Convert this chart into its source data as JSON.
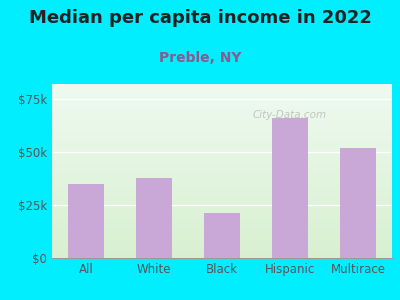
{
  "title": "Median per capita income in 2022",
  "subtitle": "Preble, NY",
  "categories": [
    "All",
    "White",
    "Black",
    "Hispanic",
    "Multirace"
  ],
  "values": [
    35000,
    37500,
    21000,
    66000,
    52000
  ],
  "bar_color": "#c9a8d8",
  "background_outer": "#00eeff",
  "background_top": "#eefaf0",
  "background_bottom": "#d8f0d0",
  "title_color": "#222222",
  "subtitle_color": "#8B5A8B",
  "tick_label_color": "#555555",
  "ylim": [
    0,
    82000
  ],
  "yticks": [
    0,
    25000,
    50000,
    75000
  ],
  "ytick_labels": [
    "$0",
    "$25k",
    "$50k",
    "$75k"
  ],
  "watermark": "City-Data.com",
  "title_fontsize": 13,
  "subtitle_fontsize": 10,
  "tick_fontsize": 8.5,
  "bar_width": 0.52
}
